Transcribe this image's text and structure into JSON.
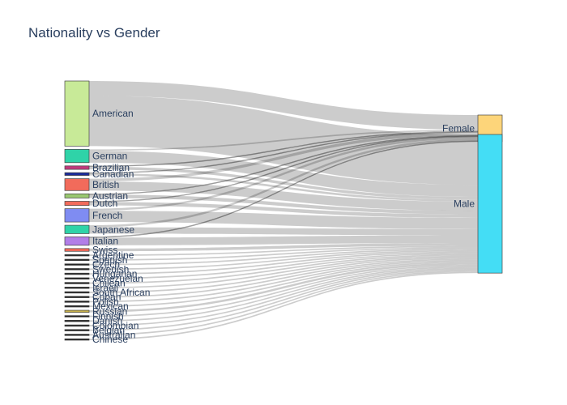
{
  "chart_data": {
    "type": "sankey",
    "title": "Nationality vs Gender",
    "sources": [
      {
        "name": "American",
        "color": "#c8ea98",
        "values": [
          21,
          72
        ]
      },
      {
        "name": "German",
        "color": "#2fd3a8",
        "values": [
          2,
          17
        ]
      },
      {
        "name": "Brazilian",
        "color": "#c03a7c",
        "values": [
          1,
          4
        ]
      },
      {
        "name": "Canadian",
        "color": "#1a2a9a",
        "values": [
          1,
          3
        ]
      },
      {
        "name": "British",
        "color": "#f26b5b",
        "values": [
          4,
          13
        ]
      },
      {
        "name": "Austrian",
        "color": "#9ac870",
        "values": [
          1,
          5
        ]
      },
      {
        "name": "Dutch",
        "color": "#f26b5b",
        "values": [
          1,
          5
        ]
      },
      {
        "name": "French",
        "color": "#7f8cf2",
        "values": [
          3,
          16
        ]
      },
      {
        "name": "Japanese",
        "color": "#2fd3a8",
        "values": [
          3,
          9
        ]
      },
      {
        "name": "Italian",
        "color": "#b27ee8",
        "values": [
          1,
          11
        ]
      },
      {
        "name": "Swiss",
        "color": "#f26b5b",
        "values": [
          0,
          4
        ]
      },
      {
        "name": "Argentine",
        "color": "#222222",
        "values": [
          0,
          2
        ]
      },
      {
        "name": "Spanish",
        "color": "#222222",
        "values": [
          0,
          2
        ]
      },
      {
        "name": "Czech",
        "color": "#222222",
        "values": [
          0,
          2
        ]
      },
      {
        "name": "Swedish",
        "color": "#222222",
        "values": [
          0,
          2
        ]
      },
      {
        "name": "Hungarian",
        "color": "#222222",
        "values": [
          0,
          2
        ]
      },
      {
        "name": "Venezuelan",
        "color": "#222222",
        "values": [
          0,
          2
        ]
      },
      {
        "name": "Chilean",
        "color": "#222222",
        "values": [
          0,
          2
        ]
      },
      {
        "name": "Israeli",
        "color": "#222222",
        "values": [
          0,
          2
        ]
      },
      {
        "name": "South African",
        "color": "#222222",
        "values": [
          0,
          2
        ]
      },
      {
        "name": "Cuban",
        "color": "#222222",
        "values": [
          0,
          2
        ]
      },
      {
        "name": "Polish",
        "color": "#222222",
        "values": [
          0,
          2
        ]
      },
      {
        "name": "Mexican",
        "color": "#222222",
        "values": [
          0,
          2
        ]
      },
      {
        "name": "Russian",
        "color": "#c8b14a",
        "values": [
          0,
          3
        ]
      },
      {
        "name": "Finnish",
        "color": "#222222",
        "values": [
          0,
          2
        ]
      },
      {
        "name": "Danish",
        "color": "#222222",
        "values": [
          0,
          2
        ]
      },
      {
        "name": "Colombian",
        "color": "#222222",
        "values": [
          0,
          2
        ]
      },
      {
        "name": "Belgian",
        "color": "#222222",
        "values": [
          0,
          2
        ]
      },
      {
        "name": "Australian",
        "color": "#222222",
        "values": [
          0,
          2
        ]
      },
      {
        "name": "Chinese",
        "color": "#222222",
        "values": [
          0,
          2
        ]
      }
    ],
    "targets": [
      {
        "name": "Female",
        "color": "#fdd57a"
      },
      {
        "name": "Male",
        "color": "#44ddf5"
      }
    ]
  }
}
